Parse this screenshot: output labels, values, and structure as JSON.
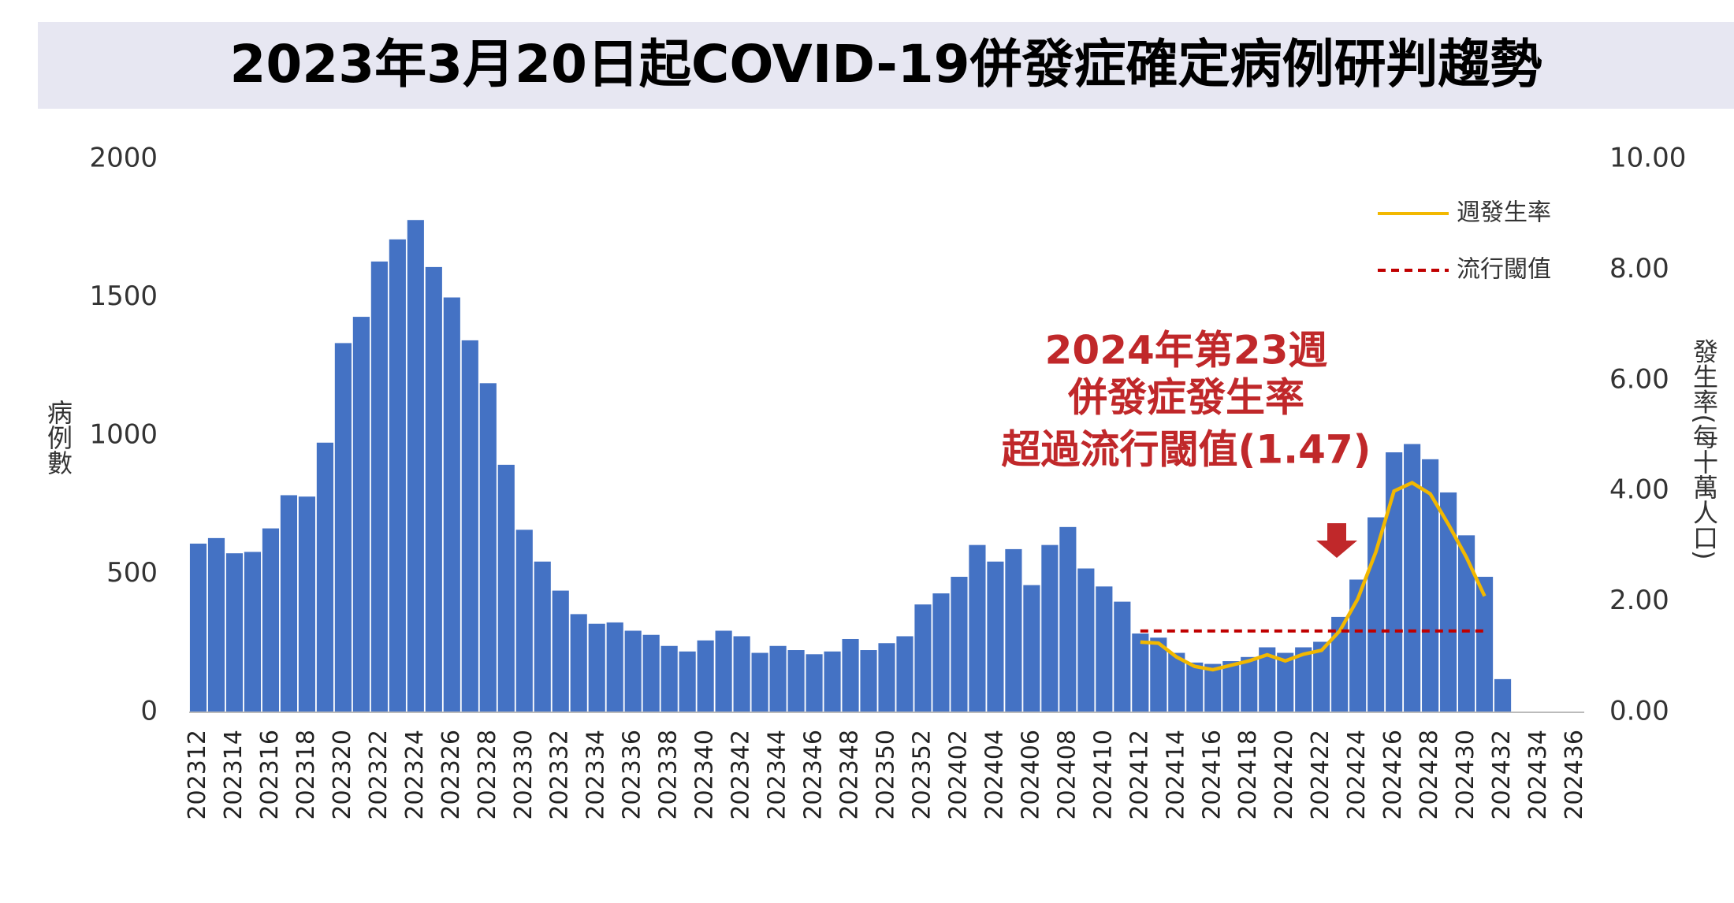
{
  "chart_data": {
    "type": "bar",
    "title": "2023年3月20日起COVID-19併發症確定病例研判趨勢",
    "annotation": [
      "2024年第23週",
      "併發症發生率",
      "超過流行閾值(1.47)"
    ],
    "ylabel": "病例數",
    "y2label": "發生率(每十萬人口)",
    "categories": [
      "202312",
      null,
      "202314",
      null,
      "202316",
      null,
      "202318",
      null,
      "202320",
      null,
      "202322",
      null,
      "202324",
      null,
      "202326",
      null,
      "202328",
      null,
      "202330",
      null,
      "202332",
      null,
      "202334",
      null,
      "202336",
      null,
      "202338",
      null,
      "202340",
      null,
      "202342",
      null,
      "202344",
      null,
      "202346",
      null,
      "202348",
      null,
      "202350",
      null,
      "202352",
      null,
      "202402",
      null,
      "202404",
      null,
      "202406",
      null,
      "202408",
      null,
      "202410",
      null,
      "202412",
      null,
      "202414",
      null,
      "202416",
      null,
      "202418",
      null,
      "202420",
      null,
      "202422",
      null,
      "202424",
      null,
      "202426",
      null,
      "202428",
      null,
      "202430",
      null,
      "202432",
      null,
      "202434",
      null,
      "202436"
    ],
    "values": [
      610,
      630,
      575,
      580,
      665,
      785,
      780,
      975,
      1335,
      1430,
      1630,
      1710,
      1780,
      1610,
      1500,
      1345,
      1190,
      895,
      660,
      545,
      440,
      355,
      320,
      325,
      295,
      280,
      240,
      220,
      260,
      295,
      275,
      215,
      240,
      225,
      210,
      220,
      265,
      225,
      250,
      275,
      390,
      430,
      490,
      605,
      545,
      590,
      460,
      605,
      670,
      520,
      455,
      400,
      285,
      270,
      215,
      180,
      175,
      185,
      200,
      235,
      215,
      235,
      255,
      345,
      480,
      705,
      940,
      970,
      915,
      795,
      640,
      490,
      120,
      null,
      null,
      null,
      null
    ],
    "color": "#4472c4",
    "series": [
      {
        "name": "週發生率",
        "color": "#f2b800",
        "axis": "y2",
        "dashed": false,
        "values": [
          null,
          null,
          null,
          null,
          null,
          null,
          null,
          null,
          null,
          null,
          null,
          null,
          null,
          null,
          null,
          null,
          null,
          null,
          null,
          null,
          null,
          null,
          null,
          null,
          null,
          null,
          null,
          null,
          null,
          null,
          null,
          null,
          null,
          null,
          null,
          null,
          null,
          null,
          null,
          null,
          null,
          null,
          null,
          null,
          null,
          null,
          null,
          null,
          null,
          null,
          null,
          null,
          1.27,
          1.25,
          1.0,
          0.83,
          0.77,
          0.85,
          0.93,
          1.04,
          0.93,
          1.05,
          1.12,
          1.47,
          2.05,
          2.9,
          4.0,
          4.15,
          3.95,
          3.4,
          2.8,
          2.1,
          null,
          null,
          null,
          null,
          null
        ]
      },
      {
        "name": "流行閾值",
        "color": "#c00000",
        "axis": "y2",
        "dashed": true,
        "values": [
          null,
          null,
          null,
          null,
          null,
          null,
          null,
          null,
          null,
          null,
          null,
          null,
          null,
          null,
          null,
          null,
          null,
          null,
          null,
          null,
          null,
          null,
          null,
          null,
          null,
          null,
          null,
          null,
          null,
          null,
          null,
          null,
          null,
          null,
          null,
          null,
          null,
          null,
          null,
          null,
          null,
          null,
          null,
          null,
          null,
          null,
          null,
          null,
          null,
          null,
          null,
          null,
          1.47,
          1.47,
          1.47,
          1.47,
          1.47,
          1.47,
          1.47,
          1.47,
          1.47,
          1.47,
          1.47,
          1.47,
          1.47,
          1.47,
          1.47,
          1.47,
          1.47,
          1.47,
          1.47,
          1.47,
          null,
          null,
          null,
          null,
          null
        ]
      }
    ],
    "ylim": [
      0,
      2000
    ],
    "yticks": [
      0,
      500,
      1000,
      1500,
      2000
    ],
    "y2lim": [
      0,
      10
    ],
    "y2ticks": [
      {
        "value": 0,
        "label": "0.00"
      },
      {
        "value": 2,
        "label": "2.00"
      },
      {
        "value": 4,
        "label": "4.00"
      },
      {
        "value": 6,
        "label": "6.00"
      },
      {
        "value": 8,
        "label": "8.00"
      },
      {
        "value": 10,
        "label": "10.00"
      }
    ],
    "legend": "upper right"
  }
}
